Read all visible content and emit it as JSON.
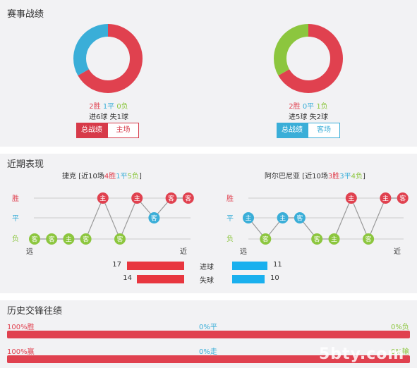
{
  "colors": {
    "win": "#e0414f",
    "draw": "#3aaed8",
    "loss": "#8cc63e",
    "bar_red": "#e8363f",
    "bar_blue": "#1ab0ee",
    "grid": "#cccccc"
  },
  "record": {
    "title": "赛事战绩",
    "left": {
      "donut": [
        4,
        2,
        0
      ],
      "wins": "2胜",
      "draws": "1平",
      "losses": "0负",
      "goals": "进6球 失1球",
      "tab_total": "总战绩",
      "tab_side": "主场"
    },
    "right": {
      "donut": [
        4,
        0,
        2
      ],
      "wins": "2胜",
      "draws": "0平",
      "losses": "1负",
      "goals": "进5球 失2球",
      "tab_total": "总战绩",
      "tab_side": "客场"
    }
  },
  "recent": {
    "title": "近期表现",
    "row_labels": {
      "win": "胜",
      "draw": "平",
      "loss": "负"
    },
    "axis_far": "远",
    "axis_near": "近",
    "left": {
      "header_name": "捷克",
      "header_pre": "[近10场",
      "wins": "4胜",
      "draws": "1平",
      "losses": "5负",
      "header_post": "]",
      "matches": [
        {
          "r": "L",
          "s": "客"
        },
        {
          "r": "L",
          "s": "客"
        },
        {
          "r": "L",
          "s": "主"
        },
        {
          "r": "L",
          "s": "客"
        },
        {
          "r": "W",
          "s": "主"
        },
        {
          "r": "L",
          "s": "客"
        },
        {
          "r": "W",
          "s": "主"
        },
        {
          "r": "D",
          "s": "客"
        },
        {
          "r": "W",
          "s": "客"
        },
        {
          "r": "W",
          "s": "客"
        }
      ]
    },
    "right": {
      "header_name": "阿尔巴尼亚",
      "header_pre": "[近10场",
      "wins": "3胜",
      "draws": "3平",
      "losses": "4负",
      "header_post": "]",
      "matches": [
        {
          "r": "D",
          "s": "主"
        },
        {
          "r": "L",
          "s": "客"
        },
        {
          "r": "D",
          "s": "主"
        },
        {
          "r": "D",
          "s": "客"
        },
        {
          "r": "L",
          "s": "客"
        },
        {
          "r": "L",
          "s": "主"
        },
        {
          "r": "W",
          "s": "主"
        },
        {
          "r": "L",
          "s": "客"
        },
        {
          "r": "W",
          "s": "主"
        },
        {
          "r": "W",
          "s": "客"
        }
      ]
    },
    "goals_for": {
      "label": "进球",
      "left": 17,
      "right": 11
    },
    "goals_against": {
      "label": "失球",
      "left": 14,
      "right": 10
    }
  },
  "h2h": {
    "title": "历史交锋往绩",
    "row1": {
      "left": "100%胜",
      "mid": "0%平",
      "right": "0%负",
      "pct": 100
    },
    "row2": {
      "left": "100%赢",
      "mid": "0%走",
      "right": "0%输",
      "pct": 100
    }
  },
  "watermark": "5bty.com"
}
